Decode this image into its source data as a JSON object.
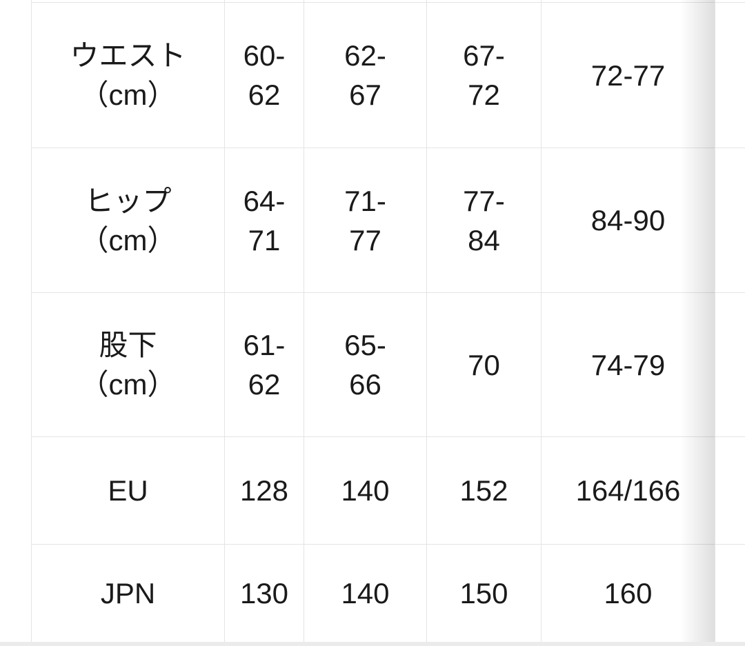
{
  "page": {
    "background": "#ffffff",
    "bottom_divider_color": "#ebebeb"
  },
  "size_table": {
    "style": {
      "text_color": "#1a1a1a",
      "border_color": "#e4e4e4",
      "highlight_column_bg": "#f4f4f4"
    },
    "highlighted_column_index": 2,
    "rows": [
      {
        "label": "ウエスト\n（cm）",
        "values": [
          "60-\n62",
          "62-\n67",
          "67-\n72",
          "72-77"
        ]
      },
      {
        "label": "ヒップ\n（cm）",
        "values": [
          "64-\n71",
          "71-\n77",
          "77-\n84",
          "84-90"
        ]
      },
      {
        "label": "股下\n（cm）",
        "values": [
          "61-\n62",
          "65-\n66",
          "70",
          "74-79"
        ]
      },
      {
        "label": "EU",
        "values": [
          "128",
          "140",
          "152",
          "164/166"
        ]
      },
      {
        "label": "JPN",
        "values": [
          "130",
          "140",
          "150",
          "160"
        ]
      }
    ]
  }
}
